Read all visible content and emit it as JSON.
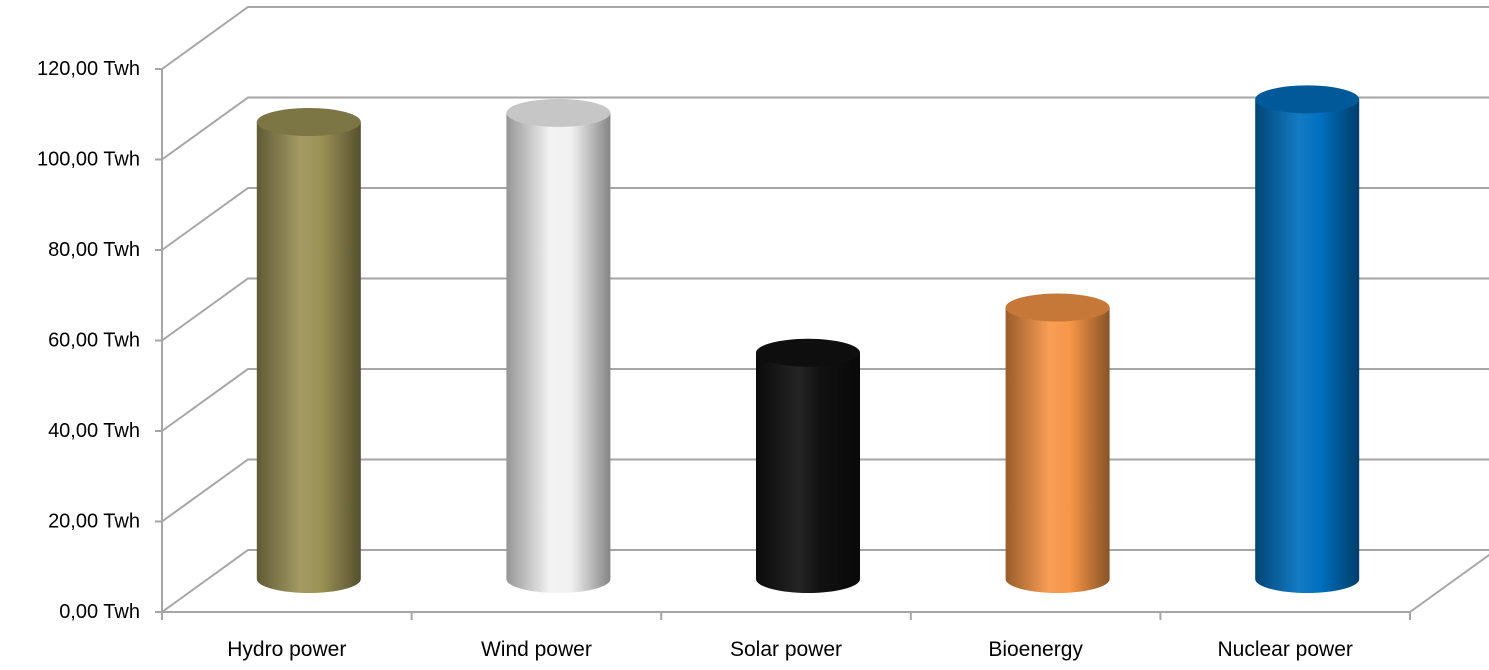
{
  "chart_data": {
    "type": "bar",
    "style": "3d-cylinder",
    "title": "",
    "xlabel": "",
    "ylabel": "",
    "unit": "Twh",
    "ylim": [
      0,
      120
    ],
    "ytick_step": 20,
    "ytick_labels": [
      "0,00 Twh",
      "20,00 Twh",
      "40,00 Twh",
      "60,00 Twh",
      "80,00 Twh",
      "100,00 Twh",
      "120,00 Twh"
    ],
    "categories": [
      "Hydro power",
      "Wind power",
      "Solar power",
      "Bioenergy",
      "Nuclear power"
    ],
    "values": [
      101,
      103,
      50,
      60,
      106
    ],
    "colors": [
      "#9b9255",
      "#f2f2f2",
      "#111111",
      "#f79646",
      "#0070c0"
    ],
    "grid": true,
    "legend": "none"
  }
}
